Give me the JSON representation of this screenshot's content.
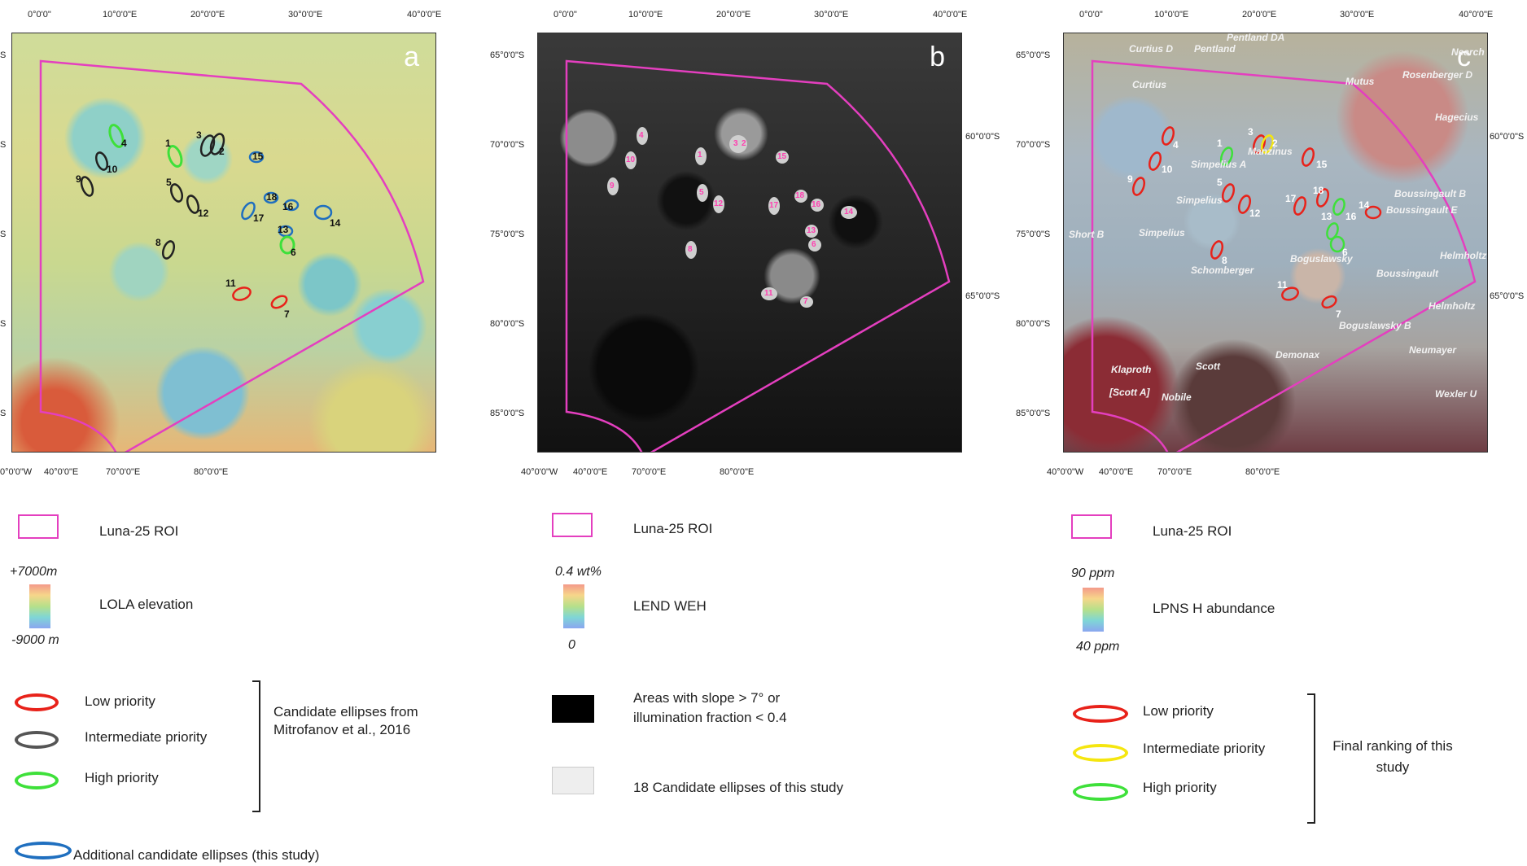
{
  "colors": {
    "roi": "#e43fbf",
    "low": "#e8221a",
    "intermediate_a": "#555555",
    "intermediate_c": "#f5e60f",
    "high": "#3ee03a",
    "additional": "#1f6fbf"
  },
  "panel_a": {
    "letter": "a",
    "top_ticks": [
      "0°0'0\"",
      "10°0'0\"E",
      "20°0'0\"E",
      "30°0'0\"E",
      "40°0'0\"E"
    ],
    "bottom_ticks": [
      "0°0'0\"W",
      "40°0'0\"E",
      "70°0'0\"E",
      "80°0'0\"E"
    ],
    "left_ticks": [
      "S",
      "S",
      "S",
      "S",
      "S"
    ],
    "labels": [
      "1",
      "2",
      "3",
      "4",
      "5",
      "6",
      "7",
      "8",
      "9",
      "10",
      "11",
      "12",
      "13",
      "14",
      "15",
      "16",
      "17",
      "18"
    ]
  },
  "panel_b": {
    "letter": "b",
    "top_ticks": [
      "0°0'0\"",
      "10°0'0\"E",
      "20°0'0\"E",
      "30°0'0\"E",
      "40°0'0\"E"
    ],
    "bottom_ticks": [
      "40°0'0\"W",
      "40°0'0\"E",
      "70°0'0\"E",
      "80°0'0\"E"
    ],
    "left_ticks": [
      "65°0'0\"S",
      "70°0'0\"S",
      "75°0'0\"S",
      "80°0'0\"S",
      "85°0'0\"S"
    ],
    "right_ticks": [
      "60°0'0\"S",
      "65°0'0\"S"
    ],
    "labels": [
      "1",
      "2",
      "3",
      "4",
      "5",
      "6",
      "7",
      "8",
      "9",
      "10",
      "11",
      "12",
      "13",
      "14",
      "15",
      "16",
      "17",
      "18"
    ]
  },
  "panel_c": {
    "letter": "c",
    "top_ticks": [
      "0°0'0\"",
      "10°0'0\"E",
      "20°0'0\"E",
      "30°0'0\"E",
      "40°0'0\"E"
    ],
    "bottom_ticks": [
      "40°0'0\"W",
      "40°0'0\"E",
      "70°0'0\"E",
      "80°0'0\"E"
    ],
    "left_ticks": [
      "65°0'0\"S",
      "70°0'0\"S",
      "75°0'0\"S",
      "80°0'0\"S",
      "85°0'0\"S"
    ],
    "right_ticks": [
      "60°0'0\"S",
      "65°0'0\"S"
    ],
    "labels": [
      "1",
      "2",
      "3",
      "4",
      "5",
      "6",
      "7",
      "8",
      "9",
      "10",
      "11",
      "12",
      "13",
      "14",
      "15",
      "16",
      "17",
      "18"
    ],
    "places": [
      "Pentland DA",
      "Curtius D",
      "Pentland",
      "Curtius",
      "Mutus",
      "Nearch",
      "Rosenberger D",
      "Hagecius",
      "Manzinus",
      "Simpelius A",
      "Simpelius",
      "Boussingault B",
      "Boussingault E",
      "Short B",
      "Simpelius",
      "Helmholtz F",
      "Schomberger",
      "Boguslawsky",
      "Boussingault",
      "Helmholtz",
      "Boguslawsky B",
      "Neumayer",
      "Demonax",
      "Scott",
      "Klaproth",
      "[Scott A]",
      "Nobile",
      "Wexler U"
    ]
  },
  "legend_a": {
    "roi": "Luna-25 ROI",
    "elev_max": "+7000m",
    "elev_label": "LOLA elevation",
    "elev_min": "-9000 m",
    "low": "Low priority",
    "intermediate": "Intermediate priority",
    "high": "High priority",
    "group": "Candidate ellipses from Mitrofanov et al., 2016",
    "additional": "Additional candidate ellipses (this study)"
  },
  "legend_b": {
    "roi": "Luna-25 ROI",
    "weh_max": "0.4 wt%",
    "weh_label": "LEND WEH",
    "weh_min": "0",
    "slope": "Areas with slope > 7° or illumination fraction < 0.4",
    "candidates": "18 Candidate ellipses of this study"
  },
  "legend_c": {
    "roi": "Luna-25 ROI",
    "h_max": "90 ppm",
    "h_label": "LPNS H abundance",
    "h_min": "40 ppm",
    "low": "Low priority",
    "intermediate": "Intermediate priority",
    "high": "High priority",
    "group": "Final ranking of this study"
  }
}
